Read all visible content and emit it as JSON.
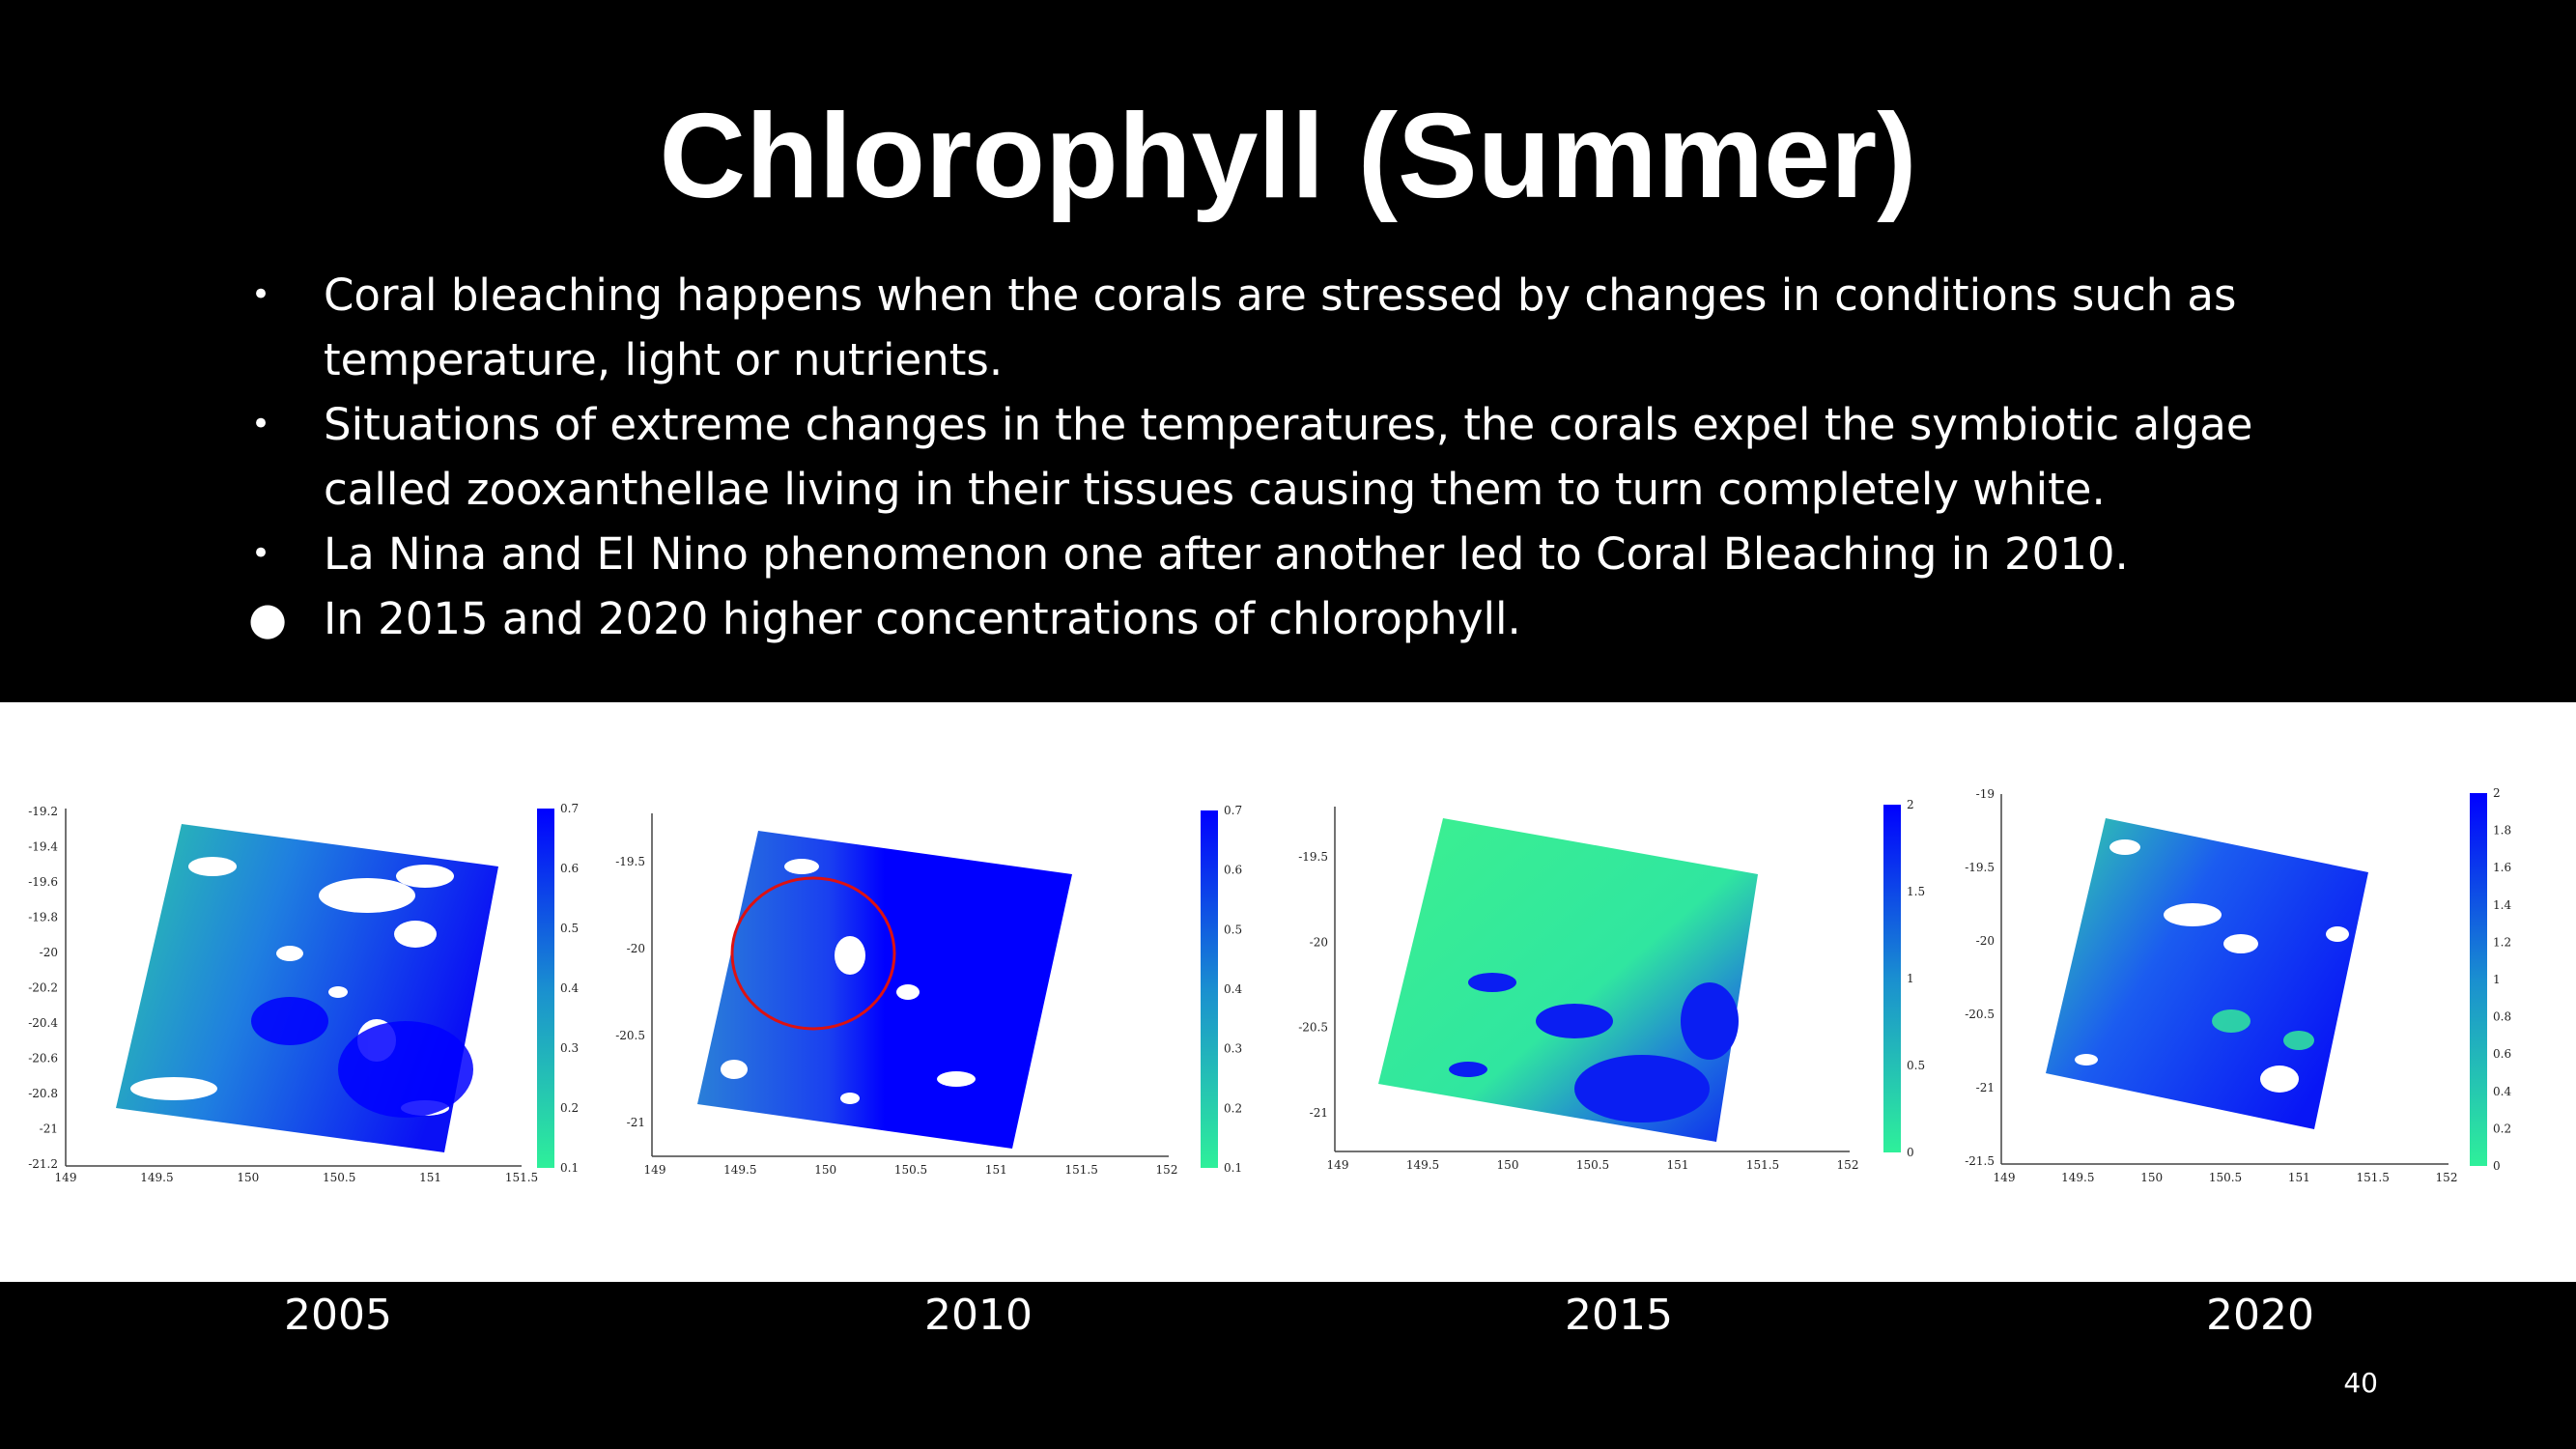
{
  "slide": {
    "title": "Chlorophyll (Summer)",
    "page_number": "40"
  },
  "bullets": [
    "Coral bleaching happens when the corals are stressed by changes in conditions such as temperature, light or nutrients.",
    "Situations of extreme changes in the temperatures, the corals expel the symbiotic algae called zooxanthellae living in their tissues causing them to turn completely white.",
    "La Nina and El Nino phenomenon one after another led to Coral Bleaching in 2010.",
    "In 2015 and 2020 higher concentrations of chlorophyll."
  ],
  "panels": [
    {
      "year": "2005",
      "x_ticks": [
        "149",
        "149.5",
        "150",
        "150.5",
        "151",
        "151.5"
      ],
      "y_ticks": [
        "-19.2",
        "-19.4",
        "-19.6",
        "-19.8",
        "-20",
        "-20.2",
        "-20.4",
        "-20.6",
        "-20.8",
        "-21",
        "-21.2"
      ],
      "colorbar_ticks": [
        "0.7",
        "0.6",
        "0.5",
        "0.4",
        "0.3",
        "0.2",
        "0.1"
      ],
      "cloud_cover": "heavy"
    },
    {
      "year": "2010",
      "x_ticks": [
        "149",
        "149.5",
        "150",
        "150.5",
        "151",
        "151.5",
        "152"
      ],
      "y_ticks": [
        "-19.5",
        "-20",
        "-20.5",
        "-21"
      ],
      "colorbar_ticks": [
        "0.7",
        "0.6",
        "0.5",
        "0.4",
        "0.3",
        "0.2",
        "0.1"
      ],
      "annotation": "red circle marking bleaching area"
    },
    {
      "year": "2015",
      "x_ticks": [
        "149",
        "149.5",
        "150",
        "150.5",
        "151",
        "151.5",
        "152"
      ],
      "y_ticks": [
        "-19.5",
        "-20",
        "-20.5",
        "-21"
      ],
      "colorbar_ticks": [
        "2",
        "1.5",
        "1",
        "0.5",
        "0"
      ]
    },
    {
      "year": "2020",
      "x_ticks": [
        "149",
        "149.5",
        "150",
        "150.5",
        "151",
        "151.5",
        "152"
      ],
      "y_ticks": [
        "-19",
        "-19.5",
        "-20",
        "-20.5",
        "-21",
        "-21.5"
      ],
      "colorbar_ticks": [
        "2",
        "1.8",
        "1.6",
        "1.4",
        "1.2",
        "1",
        "0.8",
        "0.6",
        "0.4",
        "0.2",
        "0"
      ]
    }
  ],
  "colors": {
    "background": "#000000",
    "text": "#ffffff",
    "low_chlorophyll": "#2ef09a",
    "high_chlorophyll": "#0000ff",
    "annotation_circle": "#dd1111"
  }
}
